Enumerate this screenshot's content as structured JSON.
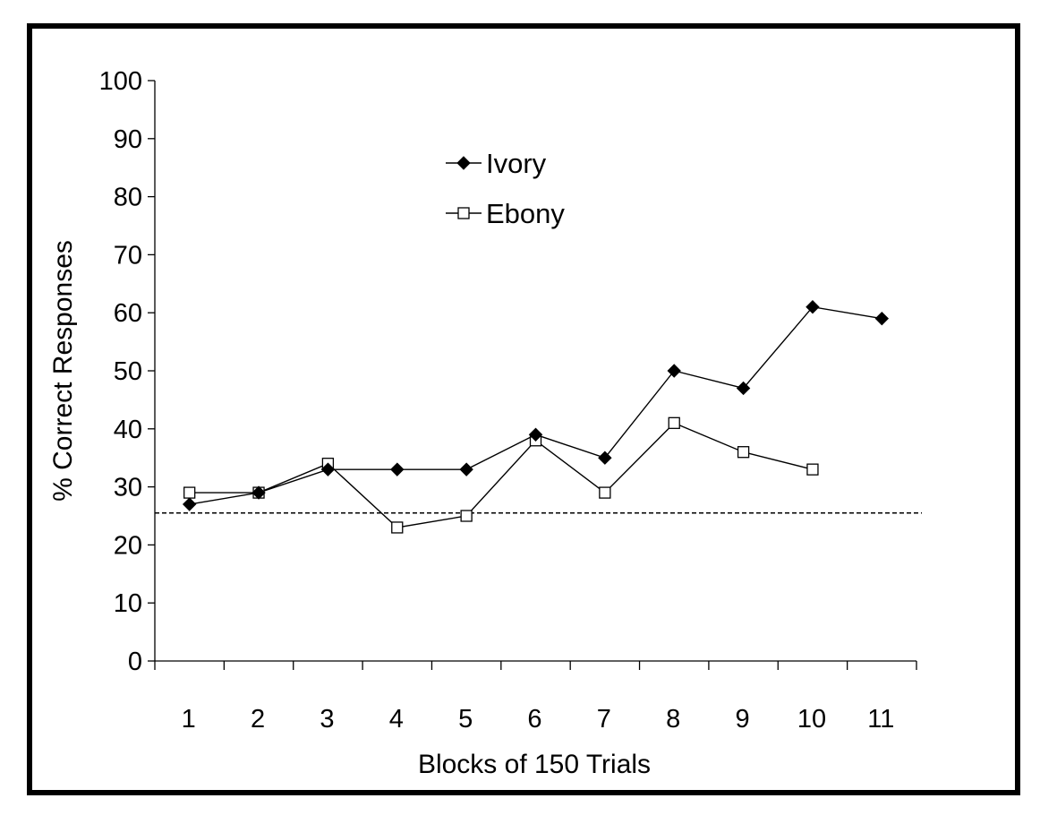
{
  "chart_data": {
    "type": "line",
    "title": "",
    "xlabel": "Blocks of 150 Trials",
    "ylabel": "% Correct Responses",
    "categories": [
      "1",
      "2",
      "3",
      "4",
      "5",
      "6",
      "7",
      "8",
      "9",
      "10",
      "11"
    ],
    "ylim": [
      0,
      100
    ],
    "yticks": [
      "0",
      "10",
      "20",
      "30",
      "40",
      "50",
      "60",
      "70",
      "80",
      "90",
      "100"
    ],
    "grid": false,
    "legend_position": "top-center",
    "series": [
      {
        "name": "Ivory",
        "marker": "filled-diamond",
        "color": "#000000",
        "values": [
          27,
          29,
          33,
          33,
          33,
          39,
          35,
          50,
          47,
          61,
          59
        ]
      },
      {
        "name": "Ebony",
        "marker": "open-square",
        "color": "#000000",
        "values": [
          29,
          29,
          34,
          23,
          25,
          38,
          29,
          41,
          36,
          33,
          null
        ]
      }
    ],
    "reference_line": {
      "y": 25.5,
      "style": "dashed"
    }
  }
}
